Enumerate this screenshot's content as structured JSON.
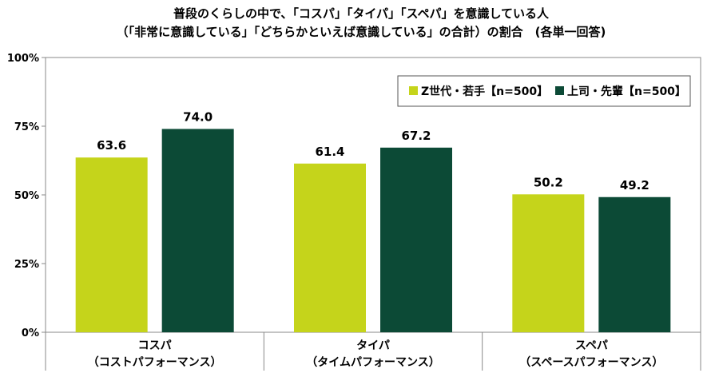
{
  "chart_data": {
    "type": "bar",
    "title": "普段のくらしの中で、「コスパ」「タイパ」「スペパ」を意識している人",
    "subtitle": "（「非常に意識している」「どちらかといえば意識している」の合計）の割合　(各単一回答)",
    "categories": [
      {
        "name": "コスパ",
        "sub": "（コストパフォーマンス）"
      },
      {
        "name": "タイパ",
        "sub": "（タイムパフォーマンス）"
      },
      {
        "name": "スペパ",
        "sub": "（スペースパフォーマンス）"
      }
    ],
    "series": [
      {
        "name": "Z世代・若手【n=500】",
        "color": "#c5d41b",
        "values": [
          63.6,
          61.4,
          50.2
        ],
        "labels": [
          "63.6",
          "61.4",
          "50.2"
        ]
      },
      {
        "name": "上司・先輩【n=500】",
        "color": "#0c4a36",
        "values": [
          74.0,
          67.2,
          49.2
        ],
        "labels": [
          "74.0",
          "67.2",
          "49.2"
        ]
      }
    ],
    "ylim": [
      0,
      100
    ],
    "yticks": [
      0,
      25,
      50,
      75,
      100
    ],
    "ytick_labels": [
      "0%",
      "25%",
      "50%",
      "75%",
      "100%"
    ],
    "gridlines": false,
    "legend_position": "top-right"
  }
}
